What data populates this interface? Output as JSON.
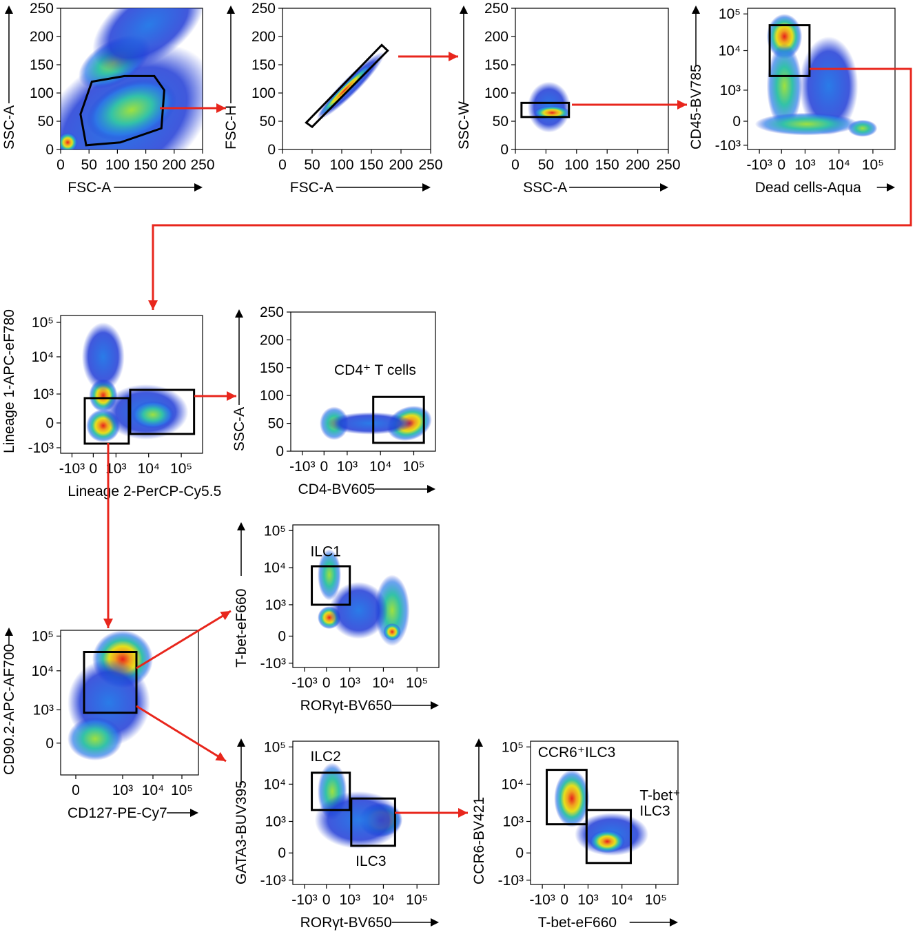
{
  "plots": [
    {
      "id": "p1",
      "xlabel": "FSC-A",
      "ylabel": "SSC-A",
      "xticks": [
        "0",
        "50",
        "100",
        "150",
        "200",
        "250"
      ],
      "yticks": [
        "0",
        "50",
        "100",
        "150",
        "200",
        "250"
      ],
      "gate_label": ""
    },
    {
      "id": "p2",
      "xlabel": "FSC-A",
      "ylabel": "FSC-H",
      "xticks": [
        "0",
        "50",
        "100",
        "150",
        "200",
        "250"
      ],
      "yticks": [
        "0",
        "50",
        "100",
        "150",
        "200",
        "250"
      ],
      "gate_label": ""
    },
    {
      "id": "p3",
      "xlabel": "SSC-A",
      "ylabel": "SSC-W",
      "xticks": [
        "0",
        "50",
        "100",
        "150",
        "200",
        "250"
      ],
      "yticks": [
        "0",
        "50",
        "100",
        "150",
        "200",
        "250"
      ],
      "gate_label": ""
    },
    {
      "id": "p4",
      "xlabel": "Dead cells-Aqua",
      "ylabel": "CD45-BV785",
      "xticks": [
        "-10³",
        "0",
        "10³",
        "10⁴",
        "10⁵"
      ],
      "yticks": [
        "-10³",
        "0",
        "10³",
        "10⁴",
        "10⁵"
      ],
      "gate_label": ""
    },
    {
      "id": "p5",
      "xlabel": "Lineage 2-PerCP-Cy5.5",
      "ylabel": "Lineage 1-APC-eF780",
      "xticks": [
        "-10³",
        "0",
        "10³",
        "10⁴",
        "10⁵"
      ],
      "yticks": [
        "-10³",
        "0",
        "10³",
        "10⁴",
        "10⁵"
      ],
      "gate_label": ""
    },
    {
      "id": "p6",
      "xlabel": "CD4-BV605",
      "ylabel": "SSC-A",
      "xticks": [
        "-10³",
        "0",
        "10³",
        "10⁴",
        "10⁵"
      ],
      "yticks": [
        "0",
        "50",
        "100",
        "150",
        "200",
        "250"
      ],
      "gate_label": "CD4⁺ T cells"
    },
    {
      "id": "p7",
      "xlabel": "CD127-PE-Cy7",
      "ylabel": "CD90.2-APC-AF700",
      "xticks": [
        "0",
        "10³",
        "10⁴",
        "10⁵"
      ],
      "yticks": [
        "0",
        "10³",
        "10⁴",
        "10⁵"
      ],
      "gate_label": ""
    },
    {
      "id": "p8",
      "xlabel": "RORγt-BV650",
      "ylabel": "T-bet-eF660",
      "xticks": [
        "-10³",
        "0",
        "10³",
        "10⁴",
        "10⁵"
      ],
      "yticks": [
        "-10³",
        "0",
        "10³",
        "10⁴",
        "10⁵"
      ],
      "gate_label": "ILC1"
    },
    {
      "id": "p9",
      "xlabel": "RORγt-BV650",
      "ylabel": "GATA3-BUV395",
      "xticks": [
        "-10³",
        "0",
        "10³",
        "10⁴",
        "10⁵"
      ],
      "yticks": [
        "-10³",
        "0",
        "10³",
        "10⁴",
        "10⁵"
      ],
      "gate_label": "ILC2",
      "gate_label2": "ILC3"
    },
    {
      "id": "p10",
      "xlabel": "T-bet-eF660",
      "ylabel": "CCR6-BV421",
      "xticks": [
        "-10³",
        "0",
        "10³",
        "10⁴",
        "10⁵"
      ],
      "yticks": [
        "-10³",
        "0",
        "10³",
        "10⁴",
        "10⁵"
      ],
      "gate_label": "CCR6⁺ILC3",
      "gate_label2": "T-bet⁺",
      "gate_label3": "ILC3"
    }
  ],
  "colors": {
    "arrow": "#e8261c",
    "low": "#1f3bd6",
    "mid": "#33c2a8",
    "high": "#e6e01c",
    "peak": "#e6201c"
  }
}
